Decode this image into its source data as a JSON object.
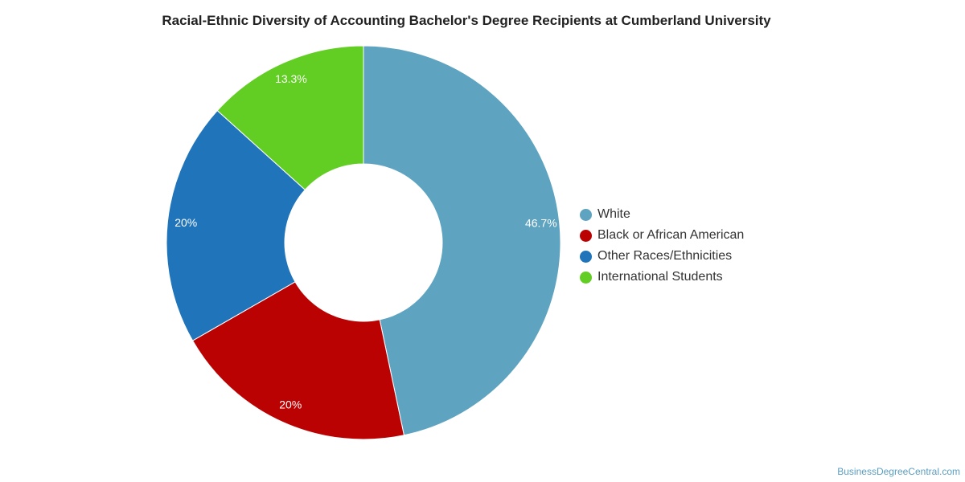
{
  "chart_data": {
    "type": "pie",
    "variant": "donut",
    "title": "Racial-Ethnic Diversity of Accounting Bachelor's Degree Recipients at Cumberland University",
    "categories": [
      "White",
      "Black or African American",
      "Other Races/Ethnicities",
      "International Students"
    ],
    "values": [
      46.7,
      20,
      20,
      13.3
    ],
    "value_labels": [
      "46.7%",
      "20%",
      "20%",
      "13.3%"
    ],
    "colors": [
      "#5ea3bf",
      "#bb0202",
      "#1f74ba",
      "#62ce23"
    ],
    "legend_position": "right"
  },
  "watermark": "BusinessDegreeCentral.com"
}
